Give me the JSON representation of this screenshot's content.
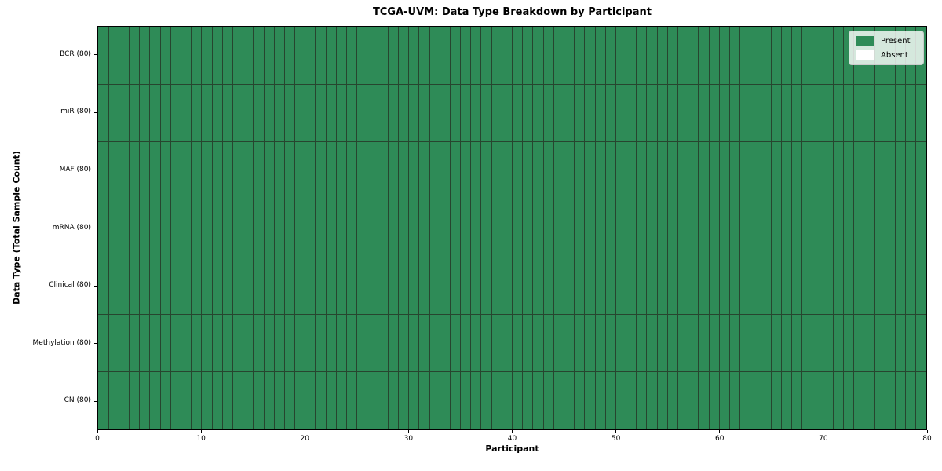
{
  "chart_data": {
    "type": "heatmap",
    "title": "TCGA-UVM: Data Type Breakdown by Participant",
    "xlabel": "Participant",
    "ylabel": "Data Type (Total Sample Count)",
    "xlim": [
      0,
      80
    ],
    "x_ticks": [
      0,
      10,
      20,
      30,
      40,
      50,
      60,
      70,
      80
    ],
    "n_participants": 80,
    "rows": [
      {
        "label": "BCR (80)",
        "data_type": "BCR",
        "total_sample_count": 80,
        "present_count": 80,
        "absent_count": 0
      },
      {
        "label": "miR (80)",
        "data_type": "miR",
        "total_sample_count": 80,
        "present_count": 80,
        "absent_count": 0
      },
      {
        "label": "MAF (80)",
        "data_type": "MAF",
        "total_sample_count": 80,
        "present_count": 80,
        "absent_count": 0
      },
      {
        "label": "mRNA (80)",
        "data_type": "mRNA",
        "total_sample_count": 80,
        "present_count": 80,
        "absent_count": 0
      },
      {
        "label": "Clinical (80)",
        "data_type": "Clinical",
        "total_sample_count": 80,
        "present_count": 80,
        "absent_count": 0
      },
      {
        "label": "Methylation (80)",
        "data_type": "Methylation",
        "total_sample_count": 80,
        "present_count": 80,
        "absent_count": 0
      },
      {
        "label": "CN (80)",
        "data_type": "CN",
        "total_sample_count": 80,
        "present_count": 80,
        "absent_count": 0
      }
    ],
    "legend": {
      "position": "upper right",
      "entries": [
        {
          "label": "Present",
          "color": "#2e8b57"
        },
        {
          "label": "Absent",
          "color": "#ffffff"
        }
      ]
    },
    "colors": {
      "present": "#2e8b57",
      "absent": "#ffffff",
      "grid_line": "#27452f",
      "spine": "#000000",
      "background": "#ffffff"
    },
    "grid": true
  }
}
